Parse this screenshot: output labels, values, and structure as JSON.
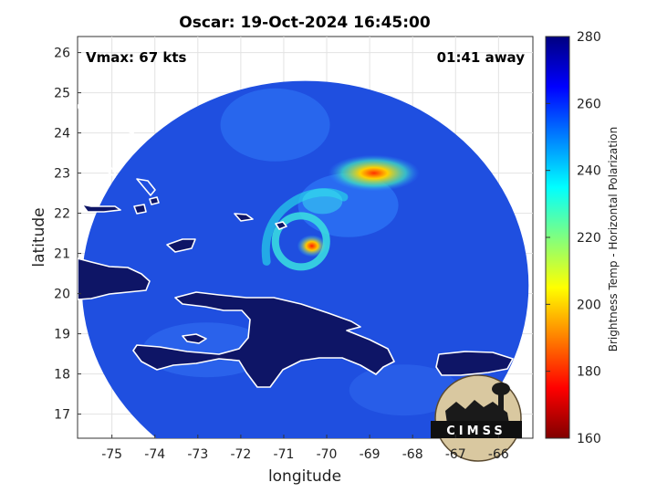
{
  "chart_data": {
    "type": "heatmap",
    "title": "Oscar: 19-Oct-2024 16:45:00",
    "xlabel": "longitude",
    "ylabel": "latitude",
    "xlim": [
      -75.8,
      -65.2
    ],
    "ylim": [
      16.4,
      26.4
    ],
    "x_ticks": [
      -75,
      -74,
      -73,
      -72,
      -71,
      -70,
      -69,
      -68,
      -67,
      -66
    ],
    "y_ticks": [
      17,
      18,
      19,
      20,
      21,
      22,
      23,
      24,
      25,
      26
    ],
    "grid": true,
    "annotations": {
      "vmax": "Vmax: 67 kts",
      "time_away": "01:41 away"
    },
    "colorbar": {
      "label": "Brightness Temp - Horizontal Polarization",
      "range": [
        160,
        280
      ],
      "ticks": [
        160,
        180,
        200,
        220,
        240,
        260,
        280
      ],
      "colormap": "jet"
    },
    "swath": {
      "center": [
        -70.5,
        20.2
      ],
      "radius_deg": 5.2
    },
    "storm_center": [
      -70.6,
      21.3
    ],
    "logo_text": "CIMSS"
  },
  "colors": {
    "background_field": "#1f4fe0",
    "land": "#0e1566",
    "coastline": "#ffffff"
  }
}
